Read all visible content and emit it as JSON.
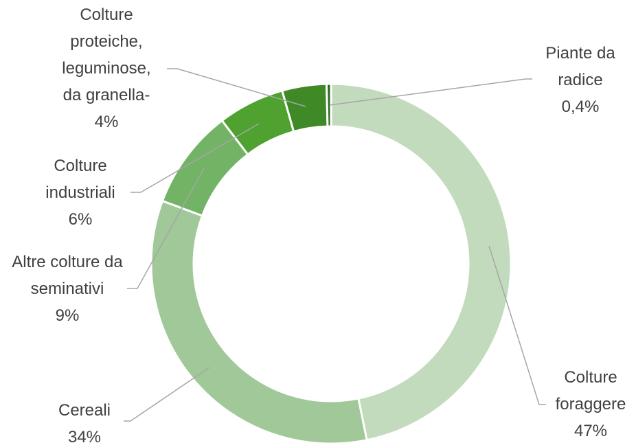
{
  "chart_data": {
    "type": "donut",
    "categories": [
      "Colture foraggere",
      "Cereali",
      "Altre colture da seminativi",
      "Colture industriali",
      "Colture proteiche, leguminose, da granella-",
      "Piante da radice"
    ],
    "values": [
      47,
      34,
      9,
      6,
      4,
      0.4
    ],
    "value_labels": [
      "47%",
      "34%",
      "9%",
      "6%",
      "4%",
      "0,4%"
    ],
    "colors": [
      "#c3dbbd",
      "#a1c899",
      "#72b365",
      "#4fa22f",
      "#3f8a26",
      "#2f6a1d"
    ]
  }
}
